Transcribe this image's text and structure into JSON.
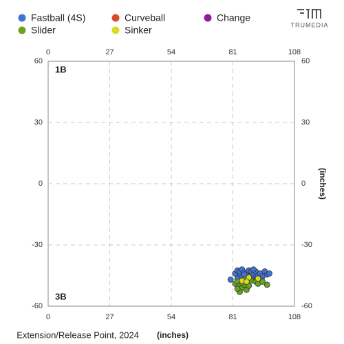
{
  "chart_data": {
    "type": "scatter",
    "x_label": "Extension/Release Point, 2024",
    "x_unit": "(inches)",
    "y_label": "(inches)",
    "annotations": [
      "1B",
      "3B"
    ],
    "brand": "TRUMEDIA",
    "xlim": [
      0,
      108
    ],
    "xticks": [
      0,
      27,
      54,
      81,
      108
    ],
    "ylim": [
      -60,
      60
    ],
    "yticks": [
      60,
      30,
      0,
      -30,
      -60
    ],
    "grid": true,
    "series": [
      {
        "name": "Fastball (4S)",
        "color": "#3f73d4",
        "x": [
          82,
          83,
          84,
          85,
          86,
          87,
          88,
          89,
          90,
          91,
          92,
          93,
          94,
          95,
          96,
          84,
          85,
          87,
          89,
          91,
          93,
          86,
          90,
          83,
          80,
          97
        ],
        "values": [
          -44,
          -42.5,
          -43,
          -42,
          -43.5,
          -44,
          -42.5,
          -43,
          -44.5,
          -43,
          -45,
          -44,
          -45.5,
          -43,
          -44.5,
          -45.5,
          -46,
          -45,
          -46,
          -46.5,
          -47,
          -44.5,
          -42,
          -46.5,
          -47,
          -44
        ]
      },
      {
        "name": "Curveball",
        "color": "#d94a2b",
        "x": [],
        "values": []
      },
      {
        "name": "Change",
        "color": "#8e1a9c",
        "x": [
          91
        ],
        "values": [
          -47.5
        ]
      },
      {
        "name": "Slider",
        "color": "#6aa521",
        "x": [
          82,
          83,
          84,
          85,
          86,
          87,
          84,
          85,
          88,
          89,
          91,
          92,
          96,
          86,
          83,
          94
        ],
        "values": [
          -49,
          -48,
          -50,
          -51,
          -49.5,
          -52,
          -53,
          -48.5,
          -50,
          -47.5,
          -48,
          -49,
          -49.5,
          -47,
          -51.5,
          -48
        ]
      },
      {
        "name": "Sinker",
        "color": "#dcdc1e",
        "x": [
          88,
          85,
          92,
          87
        ],
        "values": [
          -46,
          -47.5,
          -46.5,
          -48
        ]
      }
    ]
  }
}
